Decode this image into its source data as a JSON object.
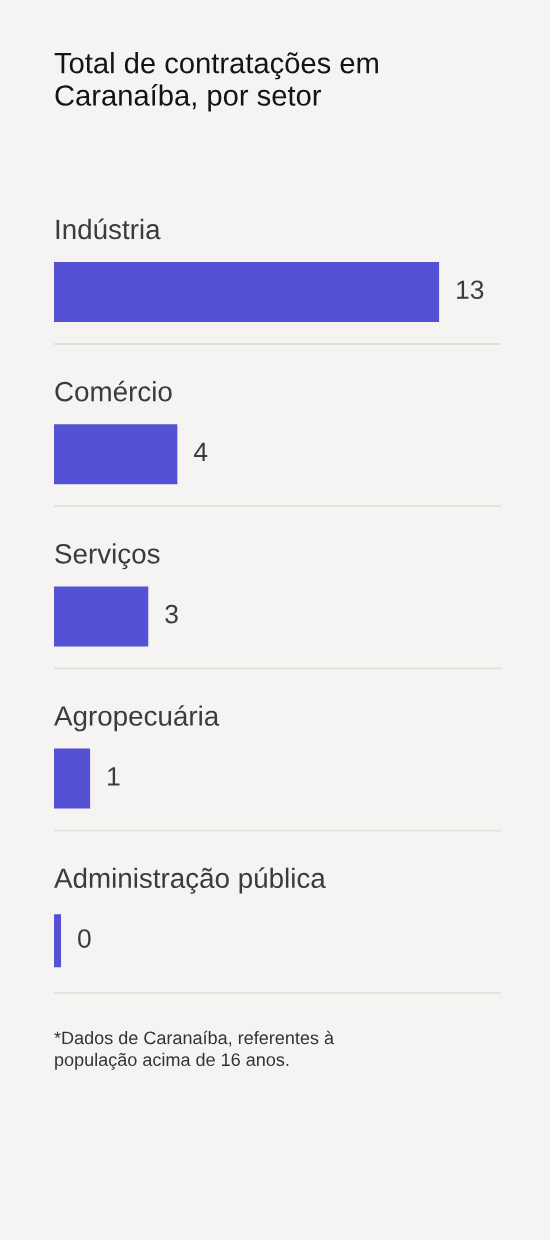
{
  "chart_data": {
    "type": "bar",
    "orientation": "horizontal",
    "title": "Total de contratações em Caranaíba, por setor",
    "categories": [
      "Indústria",
      "Comércio",
      "Serviços",
      "Agropecuária",
      "Administração pública"
    ],
    "values": [
      13,
      4,
      3,
      1,
      0
    ],
    "color": "#5551d5",
    "data_labels": true,
    "grid": "y",
    "tick_labels": "y",
    "annotations": [
      "*Dados de Caranaíba, referentes à população acima de 16 anos."
    ]
  }
}
